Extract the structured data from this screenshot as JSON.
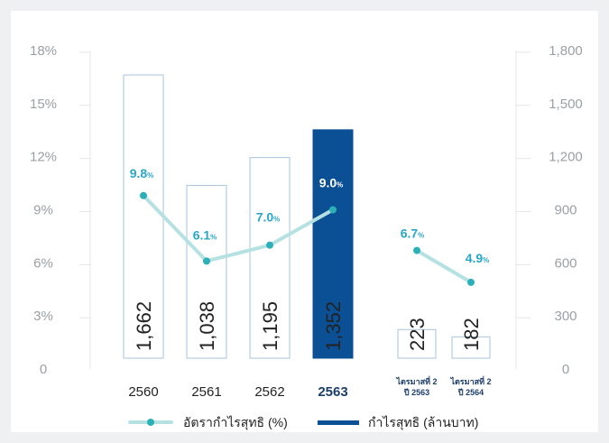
{
  "chart_data": {
    "type": "bar+line",
    "categories": [
      "2560",
      "2561",
      "2562",
      "2563",
      "ไตรมาสที่ 2 ปี 2563",
      "ไตรมาสที่ 2 ปี 2564"
    ],
    "category_labels": [
      {
        "lines": [
          "2560"
        ]
      },
      {
        "lines": [
          "2561"
        ]
      },
      {
        "lines": [
          "2562"
        ]
      },
      {
        "lines": [
          "2563"
        ],
        "bold": true
      },
      {
        "lines": [
          "ไตรมาสที่ 2",
          "ปี 2563"
        ],
        "small": true
      },
      {
        "lines": [
          "ไตรมาสที่ 2",
          "ปี 2564"
        ],
        "small": true
      }
    ],
    "series": [
      {
        "name": "กำไรสุทธิ (ล้านบาท)",
        "type": "bar",
        "axis": "right",
        "values": [
          1662,
          1038,
          1195,
          1352,
          223,
          182
        ],
        "value_labels": [
          "1,662",
          "1,038",
          "1,195",
          "1,352",
          "223",
          "182"
        ],
        "highlight_index": 3
      },
      {
        "name": "อัตรากำไรสุทธิ (%)",
        "type": "line",
        "axis": "left",
        "values": [
          9.8,
          6.1,
          7.0,
          9.0,
          6.7,
          4.9
        ],
        "value_labels": [
          "9.8",
          "6.1",
          "7.0",
          "9.0",
          "6.7",
          "4.9"
        ],
        "unit_suffix": "%"
      }
    ],
    "left_axis": {
      "ylim": [
        0,
        18
      ],
      "ticks": [
        "0",
        "3%",
        "6%",
        "9%",
        "12%",
        "15%",
        "18%"
      ]
    },
    "right_axis": {
      "ylim": [
        0,
        1800
      ],
      "ticks": [
        "0",
        "300",
        "600",
        "900",
        "1,200",
        "1,500",
        "1,800"
      ]
    },
    "legend": {
      "placement": "bottom"
    },
    "colors": {
      "bar_outline": "#a9c4dc",
      "bar_fill": "#ffffff",
      "bar_highlight": "#0b4f94",
      "line": "#b5e1e3",
      "marker": "#2bb0b8",
      "pct_label": "#2aa6c8",
      "pct_label_highlight": "#ffffff",
      "background": "#eef0f2"
    }
  }
}
